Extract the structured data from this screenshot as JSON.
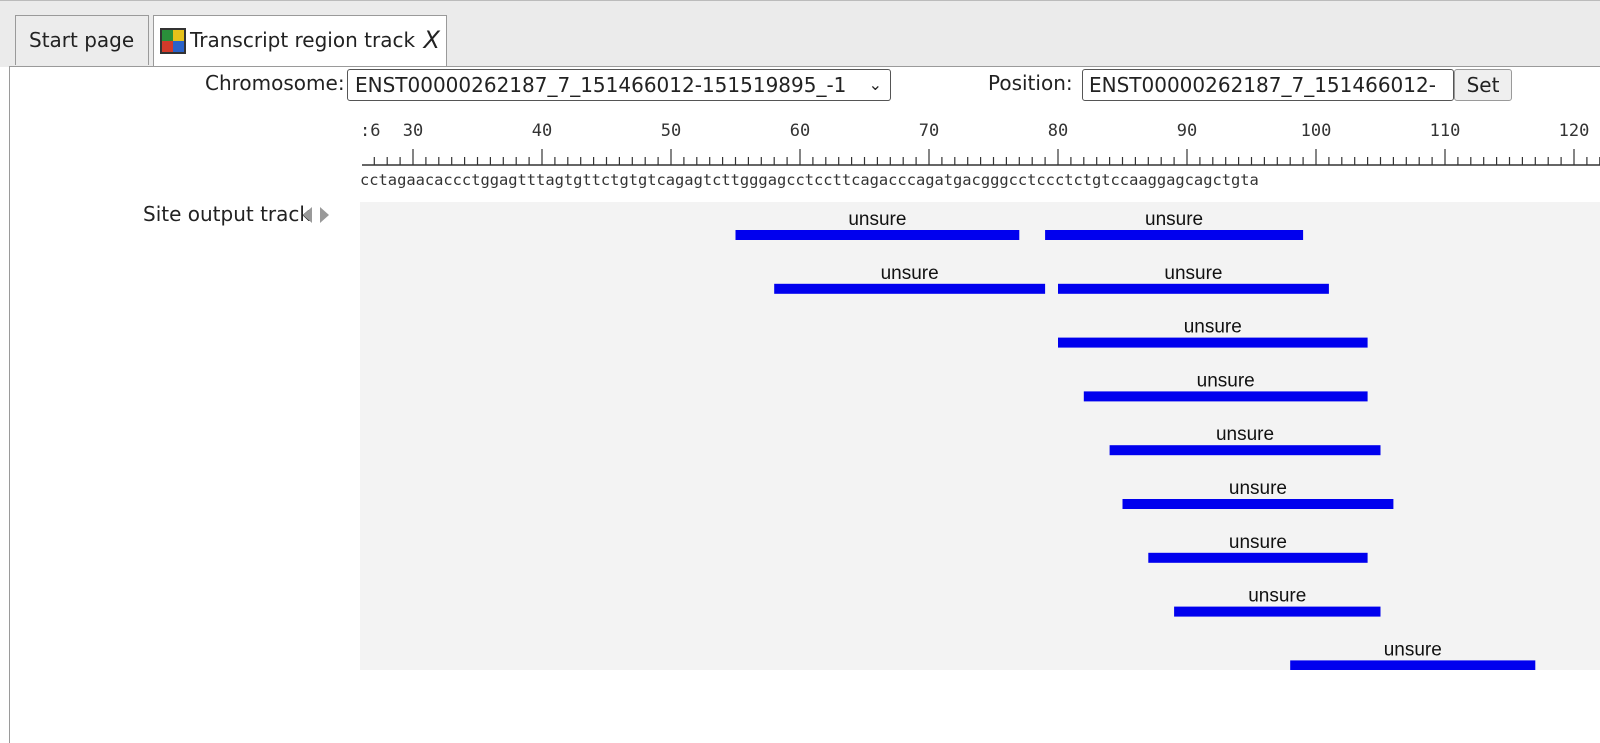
{
  "tabs": [
    {
      "label": "Start page",
      "active": false
    },
    {
      "label": "Transcript region track",
      "active": true,
      "close_label": "X"
    }
  ],
  "controls": {
    "chromosome_label": "Chromosome:",
    "chromosome_value": "ENST00000262187_7_151466012-151519895_-1",
    "position_label": "Position:",
    "position_value": "ENST00000262187_7_151466012-",
    "set_label": "Set"
  },
  "ruler": {
    "first_partial_label": ":6",
    "labels": [
      30,
      40,
      50,
      60,
      70,
      80,
      90,
      100,
      110,
      120
    ],
    "sequence": "cctagaacaccctggagtttagtgttctgtgtcagagtcttgggagcctccttcagacccagatgacgggcctccctctgtccaaggagcagctgta"
  },
  "track": {
    "name": "Site output track",
    "scroll_left_icon": "triangle-left-icon",
    "scroll_right_icon": "triangle-right-icon",
    "bar_color": "#0000ee",
    "background_color": "#f3f3f3",
    "features": [
      {
        "label": "unsure",
        "start": 55,
        "end": 77,
        "row": 0
      },
      {
        "label": "unsure",
        "start": 79,
        "end": 99,
        "row": 0
      },
      {
        "label": "unsure",
        "start": 58,
        "end": 79,
        "row": 1
      },
      {
        "label": "unsure",
        "start": 80,
        "end": 101,
        "row": 1
      },
      {
        "label": "unsure",
        "start": 80,
        "end": 104,
        "row": 2
      },
      {
        "label": "unsure",
        "start": 82,
        "end": 104,
        "row": 3
      },
      {
        "label": "unsure",
        "start": 84,
        "end": 105,
        "row": 4
      },
      {
        "label": "unsure",
        "start": 85,
        "end": 106,
        "row": 5
      },
      {
        "label": "unsure",
        "start": 87,
        "end": 104,
        "row": 6
      },
      {
        "label": "unsure",
        "start": 89,
        "end": 105,
        "row": 7
      },
      {
        "label": "unsure",
        "start": 98,
        "end": 117,
        "row": 8
      }
    ]
  }
}
